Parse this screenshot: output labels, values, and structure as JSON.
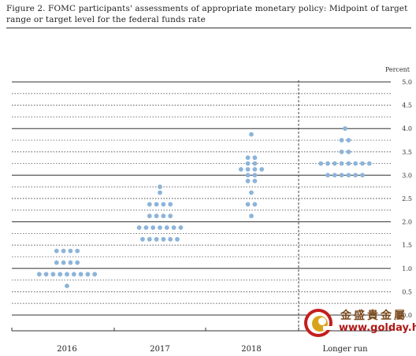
{
  "figure": {
    "title": "Figure 2. FOMC participants' assessments of appropriate monetary policy: Midpoint of target range or target level for the federal funds rate"
  },
  "chart_data": {
    "type": "scatter",
    "title": "Figure 2. FOMC participants' assessments of appropriate monetary policy: Midpoint of target range or target level for the federal funds rate",
    "ylabel": "Percent",
    "ylim": [
      0,
      5
    ],
    "y_ticks": [
      "0.0",
      "0.5",
      "1.0",
      "1.5",
      "2.0",
      "2.5",
      "3.0",
      "3.5",
      "4.0",
      "4.5",
      "5.0"
    ],
    "categories": [
      "2016",
      "2017",
      "2018",
      "Longer run"
    ],
    "dot_color": "#8db4d9",
    "grid": "dotted at each 0.125, solid at each 1.0",
    "dots": [
      {
        "category": "2016",
        "counts": [
          {
            "y": 0.625,
            "n": 1
          },
          {
            "y": 0.875,
            "n": 9
          },
          {
            "y": 1.125,
            "n": 4
          },
          {
            "y": 1.375,
            "n": 4
          }
        ]
      },
      {
        "category": "2017",
        "counts": [
          {
            "y": 1.625,
            "n": 6
          },
          {
            "y": 1.875,
            "n": 7
          },
          {
            "y": 2.125,
            "n": 4
          },
          {
            "y": 2.375,
            "n": 4
          },
          {
            "y": 2.625,
            "n": 1
          },
          {
            "y": 2.75,
            "n": 1
          }
        ]
      },
      {
        "category": "2018",
        "counts": [
          {
            "y": 2.125,
            "n": 1
          },
          {
            "y": 2.375,
            "n": 2
          },
          {
            "y": 2.625,
            "n": 1
          },
          {
            "y": 2.875,
            "n": 2
          },
          {
            "y": 3.0,
            "n": 2
          },
          {
            "y": 3.125,
            "n": 4
          },
          {
            "y": 3.25,
            "n": 2
          },
          {
            "y": 3.375,
            "n": 2
          },
          {
            "y": 3.875,
            "n": 1
          }
        ]
      },
      {
        "category": "Longer run",
        "counts": [
          {
            "y": 3.0,
            "n": 6
          },
          {
            "y": 3.25,
            "n": 8
          },
          {
            "y": 3.5,
            "n": 2
          },
          {
            "y": 3.75,
            "n": 2
          },
          {
            "y": 4.0,
            "n": 1
          }
        ]
      }
    ]
  },
  "watermark": {
    "name": "金盛貴金屬",
    "url": "www.golday.hk",
    "logo_icon": "golday-logo"
  }
}
